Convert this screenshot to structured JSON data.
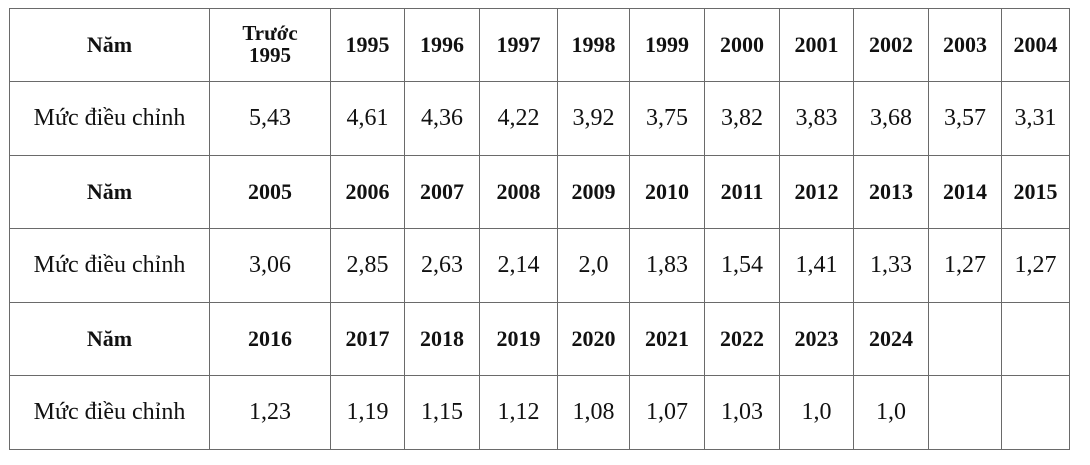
{
  "table": {
    "row_label_year": "Năm",
    "row_label_rate": "Mức điều chỉnh",
    "blocks": [
      {
        "years": [
          "Trước\n1995",
          "1995",
          "1996",
          "1997",
          "1998",
          "1999",
          "2000",
          "2001",
          "2002",
          "2003",
          "2004"
        ],
        "values": [
          "5,43",
          "4,61",
          "4,36",
          "4,22",
          "3,92",
          "3,75",
          "3,82",
          "3,83",
          "3,68",
          "3,57",
          "3,31"
        ]
      },
      {
        "years": [
          "2005",
          "2006",
          "2007",
          "2008",
          "2009",
          "2010",
          "2011",
          "2012",
          "2013",
          "2014",
          "2015"
        ],
        "values": [
          "3,06",
          "2,85",
          "2,63",
          "2,14",
          "2,0",
          "1,83",
          "1,54",
          "1,41",
          "1,33",
          "1,27",
          "1,27"
        ]
      },
      {
        "years": [
          "2016",
          "2017",
          "2018",
          "2019",
          "2020",
          "2021",
          "2022",
          "2023",
          "2024",
          "",
          ""
        ],
        "values": [
          "1,23",
          "1,19",
          "1,15",
          "1,12",
          "1,08",
          "1,07",
          "1,03",
          "1,0",
          "1,0",
          "",
          ""
        ]
      }
    ]
  }
}
